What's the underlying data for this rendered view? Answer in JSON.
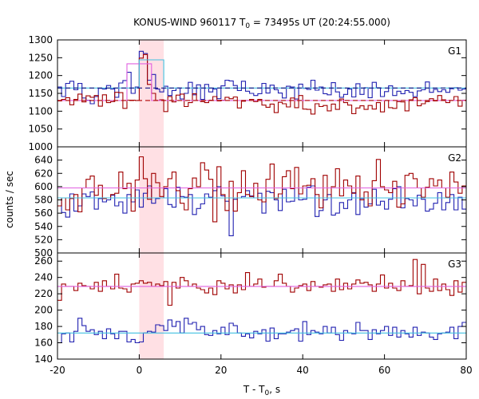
{
  "chart_data": {
    "type": "line",
    "title": "KONUS-WIND 960117 T",
    "title_sub": "0",
    "title_rest": " = 73495s UT (20:24:55.000)",
    "xlabel": "T - T",
    "xlabel_sub": "0",
    "xlabel_rest": ", s",
    "ylabel": "counts / sec",
    "xlim": [
      -20,
      80
    ],
    "x_ticks": [
      -20,
      0,
      20,
      40,
      60,
      80
    ],
    "x_tick_labels": [
      "-20",
      "0",
      "20",
      "40",
      "60",
      "80"
    ],
    "highlight_interval": [
      0,
      6
    ],
    "grid": false,
    "colors": {
      "red": "#a00000",
      "blue": "#2020b0",
      "pink": "#e060e0",
      "cyan": "#40c0e0",
      "dashed_red": "#b00000",
      "dashed_blue": "#101080",
      "highlight": "#ffe0e4"
    },
    "panels": [
      {
        "label": "G1",
        "ylim": [
          1000,
          1300
        ],
        "y_ticks": [
          1000,
          1050,
          1100,
          1150,
          1200,
          1250,
          1300
        ],
        "y_tick_labels": [
          "1000",
          "1050",
          "1100",
          "1150",
          "1200",
          "1250",
          "1300"
        ],
        "series": [
          {
            "color": "blue",
            "values": [
              1168,
              1141,
              1178,
              1184,
              1160,
              1178,
              1137,
              1131,
              1121,
              1141,
              1164,
              1162,
              1172,
              1162,
              1139,
              1179,
              1186,
              1209,
              1150,
              1168,
              1268,
              1262,
              1187,
              1203,
              1162,
              1154,
              1170,
              1144,
              1158,
              1165,
              1134,
              1150,
              1181,
              1146,
              1174,
              1133,
              1175,
              1154,
              1162,
              1135,
              1171,
              1187,
              1185,
              1172,
              1158,
              1184,
              1156,
              1150,
              1144,
              1149,
              1178,
              1151,
              1173,
              1160,
              1151,
              1137,
              1170,
              1168,
              1134,
              1176,
              1164,
              1161,
              1187,
              1159,
              1168,
              1149,
              1146,
              1180,
              1154,
              1139,
              1147,
              1162,
              1140,
              1177,
              1147,
              1166,
              1138,
              1181,
              1166,
              1141,
              1155,
              1171,
              1144,
              1156,
              1149,
              1158,
              1153,
              1141,
              1157,
              1160,
              1182,
              1153,
              1161,
              1155,
              1160,
              1153,
              1163,
              1166,
              1159,
              1162
            ]
          },
          {
            "color": "red",
            "values": [
              1129,
              1133,
              1138,
              1118,
              1133,
              1148,
              1126,
              1143,
              1139,
              1144,
              1114,
              1146,
              1124,
              1127,
              1153,
              1152,
              1108,
              1131,
              1131,
              1130,
              1249,
              1259,
              1175,
              1150,
              1130,
              1132,
              1099,
              1141,
              1126,
              1145,
              1148,
              1113,
              1124,
              1149,
              1130,
              1127,
              1124,
              1131,
              1141,
              1129,
              1131,
              1139,
              1135,
              1140,
              1109,
              1128,
              1130,
              1133,
              1127,
              1133,
              1117,
              1111,
              1120,
              1096,
              1125,
              1121,
              1112,
              1137,
              1110,
              1144,
              1106,
              1105,
              1092,
              1121,
              1113,
              1116,
              1101,
              1120,
              1105,
              1134,
              1124,
              1117,
              1093,
              1109,
              1115,
              1105,
              1116,
              1106,
              1124,
              1098,
              1130,
              1110,
              1108,
              1127,
              1126,
              1101,
              1132,
              1138,
              1115,
              1121,
              1127,
              1135,
              1129,
              1144,
              1132,
              1124,
              1130,
              1141,
              1114,
              1131
            ]
          }
        ],
        "background_level": {
          "color": "dashed_red",
          "value": 1130
        },
        "background_level_2": {
          "color": "dashed_blue",
          "value": 1165
        },
        "fit_levels": [
          {
            "color": "pink",
            "x": [
              -20,
              -3,
              -3,
              3,
              3,
              80
            ],
            "y": [
              1130,
              1130,
              1233,
              1233,
              1130,
              1130
            ]
          },
          {
            "color": "cyan",
            "x": [
              -20,
              0,
              0,
              6,
              6,
              80
            ],
            "y": [
              1165,
              1165,
              1244,
              1244,
              1165,
              1165
            ]
          }
        ]
      },
      {
        "label": "G2",
        "ylim": [
          500,
          660
        ],
        "y_ticks": [
          500,
          520,
          540,
          560,
          580,
          600,
          620,
          640
        ],
        "y_tick_labels": [
          "500",
          "520",
          "540",
          "560",
          "580",
          "600",
          "620",
          "640"
        ],
        "series": [
          {
            "color": "blue",
            "values": [
              583,
              561,
              554,
              589,
              563,
              571,
              589,
              585,
              592,
              566,
              582,
              577,
              580,
              587,
              571,
              577,
              560,
              588,
              577,
              595,
              569,
              590,
              601,
              575,
              582,
              583,
              597,
              573,
              569,
              599,
              585,
              584,
              588,
              558,
              567,
              574,
              589,
              584,
              594,
              600,
              586,
              578,
              526,
              581,
              583,
              585,
              594,
              586,
              583,
              590,
              560,
              593,
              591,
              580,
              564,
              596,
              577,
              578,
              598,
              580,
              581,
              599,
              601,
              555,
              564,
              580,
              588,
              557,
              560,
              576,
              567,
              580,
              591,
              558,
              582,
              569,
              574,
              596,
              572,
              578,
              566,
              581,
              597,
              600,
              568,
              582,
              580,
              571,
              587,
              581,
              563,
              566,
              575,
              591,
              565,
              576,
              588,
              565,
              584,
              566
            ]
          },
          {
            "color": "red",
            "values": [
              571,
              583,
              565,
              582,
              588,
              562,
              598,
              611,
              616,
              587,
              602,
              582,
              583,
              588,
              590,
              622,
              597,
              605,
              563,
              610,
              645,
              612,
              581,
              620,
              606,
              585,
              600,
              612,
              622,
              594,
              575,
              565,
              597,
              613,
              600,
              636,
              625,
              611,
              547,
              630,
              588,
              564,
              608,
              563,
              591,
              624,
              588,
              585,
              605,
              580,
              577,
              611,
              634,
              582,
              589,
              615,
              624,
              597,
              629,
              589,
              601,
              602,
              612,
              588,
              568,
              617,
              583,
              600,
              627,
              586,
              610,
              601,
              590,
              616,
              580,
              592,
              571,
              609,
              641,
              600,
              595,
              591,
              608,
              569,
              574,
              617,
              620,
              612,
              598,
              584,
              599,
              612,
              601,
              610,
              598,
              584,
              622,
              607,
              590,
              601
            ]
          }
        ],
        "fit_levels": [
          {
            "color": "pink",
            "x": [
              -20,
              80
            ],
            "y": [
              598,
              598
            ]
          },
          {
            "color": "cyan",
            "x": [
              -20,
              80
            ],
            "y": [
              583,
              583
            ]
          }
        ]
      },
      {
        "label": "G3",
        "ylim": [
          140,
          270
        ],
        "y_ticks": [
          140,
          160,
          180,
          200,
          220,
          240,
          260
        ],
        "y_tick_labels": [
          "140",
          "160",
          "180",
          "200",
          "220",
          "240",
          "260"
        ],
        "series": [
          {
            "color": "blue",
            "values": [
              160,
              171,
              172,
              161,
              174,
              190,
              181,
              174,
              176,
              170,
              174,
              165,
              177,
              171,
              165,
              174,
              174,
              161,
              164,
              160,
              161,
              172,
              174,
              173,
              182,
              181,
              175,
              188,
              180,
              186,
              172,
              190,
              183,
              185,
              176,
              180,
              170,
              169,
              175,
              171,
              179,
              170,
              184,
              181,
              172,
              168,
              171,
              166,
              174,
              171,
              176,
              162,
              178,
              165,
              171,
              171,
              173,
              175,
              177,
              162,
              186,
              170,
              175,
              173,
              171,
              180,
              172,
              179,
              170,
              163,
              175,
              172,
              171,
              185,
              175,
              175,
              164,
              176,
              171,
              175,
              180,
              169,
              179,
              167,
              175,
              171,
              167,
              179,
              169,
              173,
              172,
              167,
              164,
              171,
              172,
              173,
              179,
              165,
              180,
              185
            ]
          },
          {
            "color": "red",
            "values": [
              212,
              232,
              229,
              229,
              224,
              233,
              230,
              229,
              226,
              234,
              223,
              236,
              229,
              226,
              244,
              227,
              226,
              222,
              232,
              233,
              236,
              233,
              234,
              229,
              232,
              230,
              235,
              206,
              234,
              227,
              240,
              236,
              229,
              232,
              227,
              225,
              221,
              227,
              219,
              236,
              233,
              226,
              231,
              221,
              231,
              225,
              246,
              229,
              232,
              238,
              228,
              229,
              229,
              236,
              244,
              233,
              229,
              222,
              227,
              230,
              232,
              224,
              235,
              229,
              228,
              231,
              232,
              223,
              238,
              225,
              233,
              226,
              232,
              237,
              233,
              234,
              231,
              223,
              232,
              243,
              227,
              233,
              227,
              224,
              236,
              229,
              230,
              262,
              220,
              256,
              227,
              223,
              238,
              224,
              232,
              225,
              218,
              236,
              222,
              234
            ]
          }
        ],
        "fit_levels": [
          {
            "color": "pink",
            "x": [
              -20,
              80
            ],
            "y": [
              229,
              229
            ]
          },
          {
            "color": "cyan",
            "x": [
              -20,
              80
            ],
            "y": [
              172,
              172
            ]
          }
        ]
      }
    ]
  }
}
